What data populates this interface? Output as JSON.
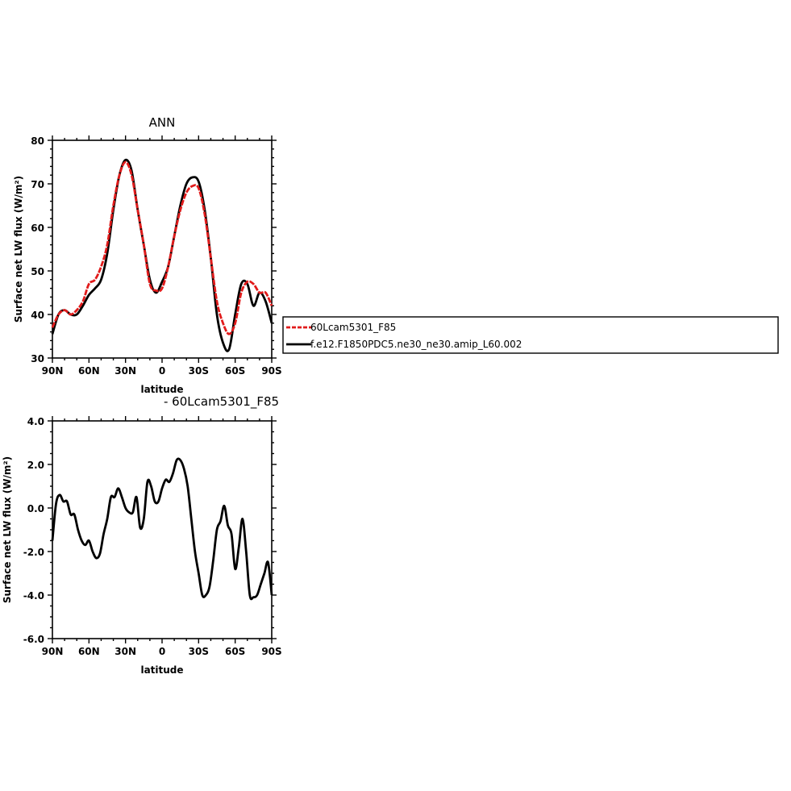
{
  "chart_data": [
    {
      "type": "line",
      "title": "ANN",
      "xlabel": "latitude",
      "ylabel": "Surface net LW flux (W/m²)",
      "x_ticks": [
        "90N",
        "60N",
        "30N",
        "0",
        "30S",
        "60S",
        "90S"
      ],
      "y_ticks": [
        "30",
        "40",
        "50",
        "60",
        "70",
        "80"
      ],
      "xlim": [
        90,
        -90
      ],
      "ylim": [
        30,
        80
      ],
      "grid": false,
      "legend_placement": "outside-right",
      "series": [
        {
          "name": "60Lcam5301_F85",
          "color": "#e11b1b",
          "x": [
            90,
            85,
            80,
            75,
            70,
            65,
            60,
            55,
            50,
            45,
            40,
            35,
            30,
            25,
            20,
            15,
            10,
            5,
            0,
            -5,
            -10,
            -15,
            -20,
            -25,
            -30,
            -35,
            -40,
            -45,
            -50,
            -55,
            -60,
            -65,
            -70,
            -75,
            -80,
            -85,
            -90
          ],
          "values": [
            37,
            40,
            41,
            40,
            41,
            43,
            47,
            48,
            51,
            56,
            65,
            72,
            75,
            72,
            64,
            56,
            47,
            45.5,
            46,
            51,
            58,
            64,
            68,
            69.5,
            69,
            63,
            53,
            43,
            38,
            35.5,
            38,
            45,
            47.5,
            47,
            45,
            45,
            42
          ]
        },
        {
          "name": "f.e12.F1850PDC5.ne30_ne30.amip_L60.002",
          "color": "#000000",
          "x": [
            90,
            85,
            80,
            75,
            70,
            65,
            60,
            55,
            50,
            45,
            40,
            35,
            30,
            25,
            20,
            15,
            10,
            5,
            0,
            -5,
            -10,
            -15,
            -20,
            -25,
            -30,
            -35,
            -40,
            -45,
            -50,
            -55,
            -60,
            -65,
            -70,
            -75,
            -80,
            -85,
            -90
          ],
          "values": [
            35.5,
            40,
            41,
            40,
            40,
            42,
            44.5,
            46,
            48,
            54,
            64,
            72,
            75.5,
            73,
            64,
            56,
            48,
            45,
            47.5,
            51,
            58,
            65,
            70,
            71.5,
            70.5,
            64,
            53,
            40,
            33.5,
            32,
            40,
            47,
            47,
            42,
            45,
            43,
            38
          ]
        }
      ]
    },
    {
      "type": "line",
      "title": "- 60Lcam5301_F85",
      "xlabel": "latitude",
      "ylabel": "Surface net LW flux (W/m²)",
      "x_ticks": [
        "90N",
        "60N",
        "30N",
        "0",
        "30S",
        "60S",
        "90S"
      ],
      "y_ticks": [
        "4.0",
        "2.0",
        "0.0",
        "-2.0",
        "-4.0",
        "-6.0"
      ],
      "xlim": [
        90,
        -90
      ],
      "ylim": [
        -6,
        4
      ],
      "grid": false,
      "series": [
        {
          "color": "#000000",
          "x": [
            90,
            87,
            84,
            81,
            78,
            75,
            72,
            69,
            66,
            63,
            60,
            57,
            54,
            51,
            48,
            45,
            42,
            39,
            36,
            33,
            30,
            27,
            24,
            21,
            18,
            15,
            12,
            9,
            6,
            3,
            0,
            -3,
            -6,
            -9,
            -12,
            -15,
            -18,
            -21,
            -24,
            -27,
            -30,
            -33,
            -36,
            -39,
            -42,
            -45,
            -48,
            -51,
            -54,
            -57,
            -60,
            -63,
            -66,
            -69,
            -72,
            -75,
            -78,
            -81,
            -84,
            -87,
            -90
          ],
          "values": [
            -1.5,
            0.2,
            0.6,
            0.3,
            0.3,
            -0.3,
            -0.3,
            -1.0,
            -1.5,
            -1.7,
            -1.5,
            -2.0,
            -2.3,
            -2.1,
            -1.2,
            -0.5,
            0.5,
            0.5,
            0.9,
            0.5,
            0.0,
            -0.2,
            -0.2,
            0.5,
            -0.9,
            -0.5,
            1.2,
            1.0,
            0.3,
            0.3,
            0.9,
            1.3,
            1.2,
            1.6,
            2.2,
            2.2,
            1.8,
            1.0,
            -0.5,
            -2.0,
            -3.0,
            -4.0,
            -4.0,
            -3.6,
            -2.4,
            -1.0,
            -0.6,
            0.1,
            -0.8,
            -1.2,
            -2.8,
            -1.8,
            -0.5,
            -2.0,
            -4.0,
            -4.1,
            -4.0,
            -3.5,
            -3.0,
            -2.5,
            -4.0
          ]
        }
      ]
    }
  ]
}
